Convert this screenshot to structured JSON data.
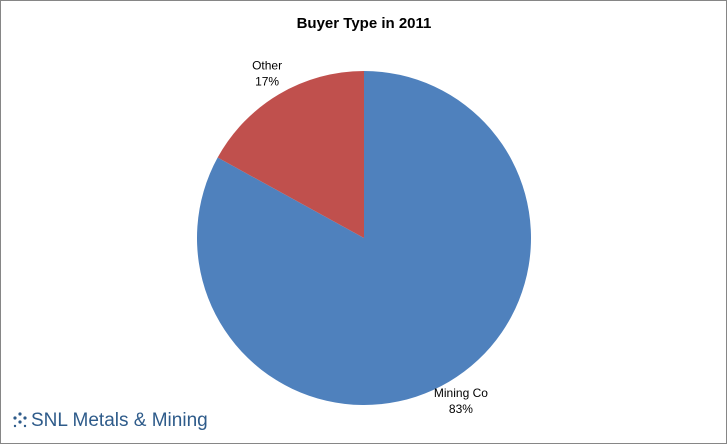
{
  "chart_data": {
    "type": "pie",
    "title": "Buyer Type in 2011",
    "categories": [
      "Mining Co",
      "Other"
    ],
    "values": [
      83,
      17
    ],
    "value_labels": [
      "83%",
      "17%"
    ],
    "colors": [
      "#4f81bd",
      "#c0504d"
    ],
    "start_angle": 0,
    "direction": "clockwise"
  },
  "logo": "SNL Metals & Mining"
}
